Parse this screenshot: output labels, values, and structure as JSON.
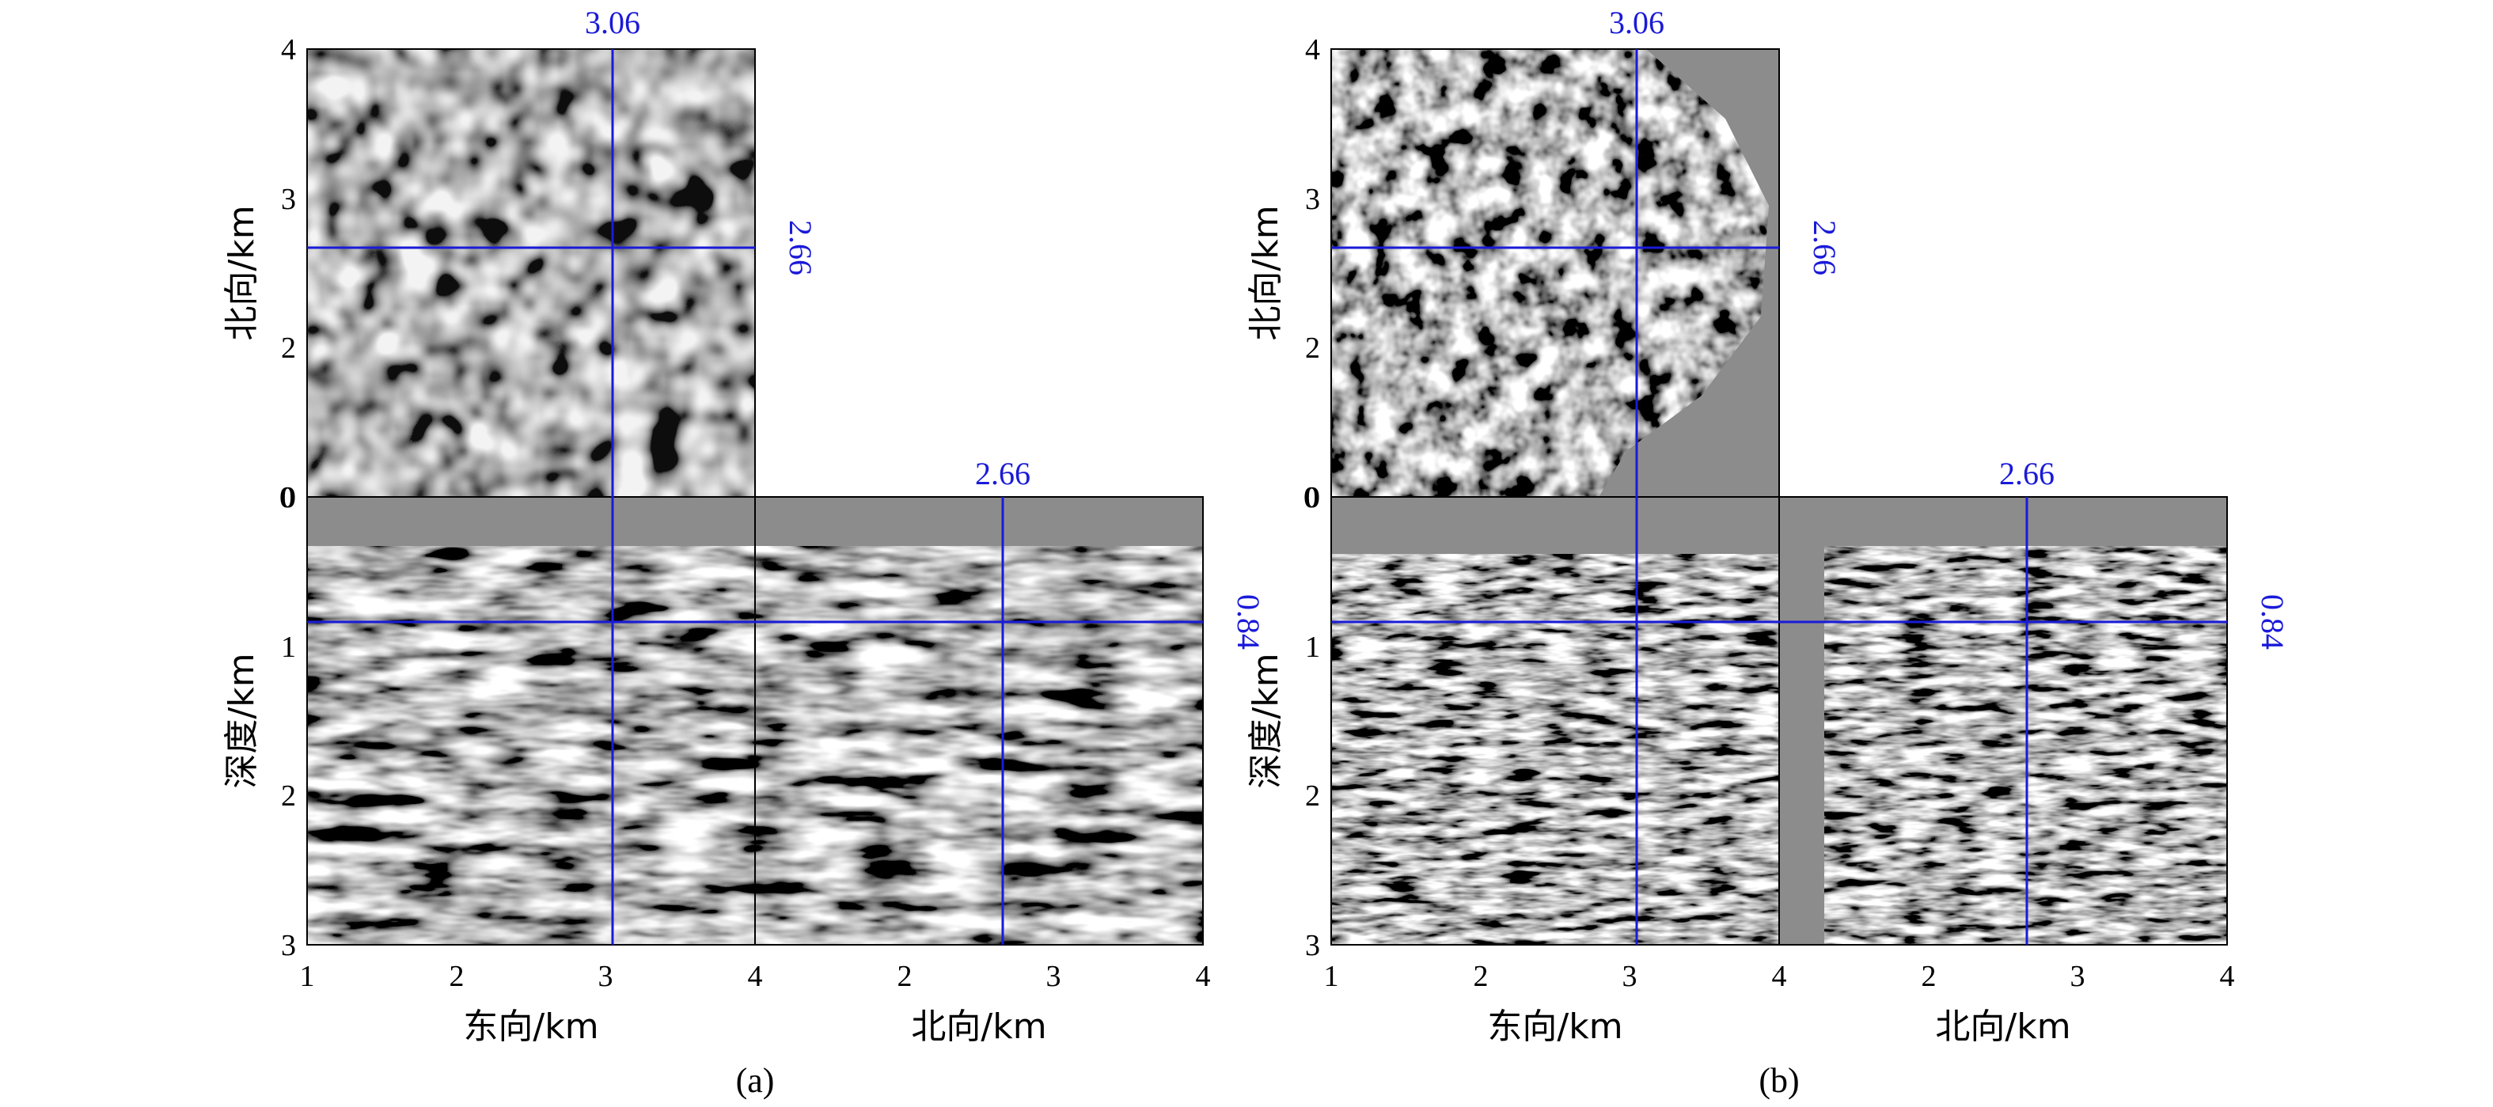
{
  "figure": {
    "panels": [
      {
        "label": "(a)",
        "map_y_label": "北向/km",
        "depth_label": "深度/km",
        "inline_x_label": "东向/km",
        "xline_x_label": "北向/km",
        "crossline_east": "3.06",
        "crossline_north": "2.66",
        "crossline_depth": "0.84",
        "north_ticks": [
          "4",
          "3",
          "2",
          "0"
        ],
        "depth_ticks": [
          "0",
          "1",
          "2",
          "3"
        ],
        "east_ticks": [
          "1",
          "2",
          "3",
          "4"
        ],
        "north_x_ticks": [
          "2",
          "3",
          "4"
        ]
      },
      {
        "label": "(b)",
        "map_y_label": "北向/km",
        "depth_label": "深度/km",
        "inline_x_label": "东向/km",
        "xline_x_label": "北向/km",
        "crossline_east": "3.06",
        "crossline_north": "2.66",
        "crossline_depth": "0.84",
        "north_ticks": [
          "4",
          "3",
          "2",
          "0"
        ],
        "depth_ticks": [
          "0",
          "1",
          "2",
          "3"
        ],
        "east_ticks": [
          "1",
          "2",
          "3",
          "4"
        ],
        "north_x_ticks": [
          "2",
          "3",
          "4"
        ]
      }
    ],
    "colors": {
      "crosshair": "#1a1ad9",
      "seismic_background": "#8c8c8c"
    }
  }
}
